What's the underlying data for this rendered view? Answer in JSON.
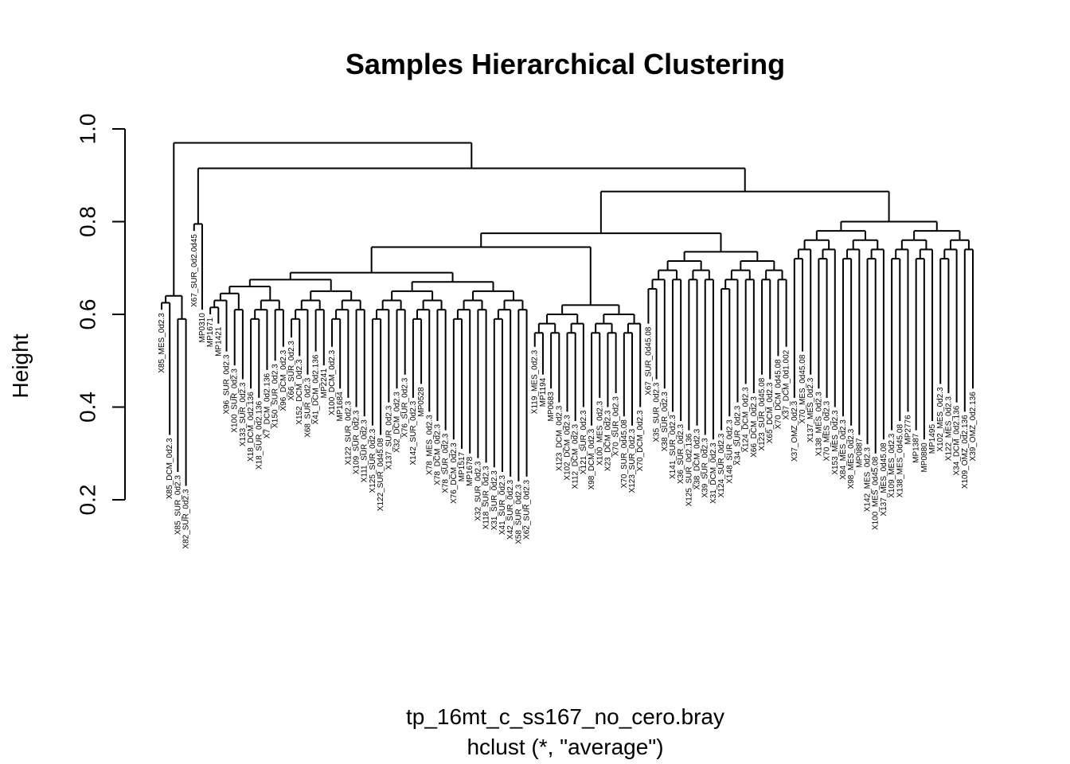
{
  "chart_data": {
    "type": "dendrogram",
    "title": "Samples Hierarchical Clustering",
    "ylabel": "Height",
    "xlabel": "tp_16mt_c_ss167_no_cero.bray",
    "sublabel": "hclust (*, \"average\")",
    "ylim": [
      0.2,
      1.0
    ],
    "yticks": [
      0.2,
      0.4,
      0.6,
      0.8,
      1.0
    ],
    "tick_labels": [
      "0.2",
      "0.4",
      "0.6",
      "0.8",
      "1.0"
    ],
    "merge_heights": {
      "root": 0.97,
      "second": 0.915,
      "third": 0.885,
      "right_super": 0.865,
      "right_right": 0.84,
      "left_major": 0.775,
      "left_sub": 0.745,
      "left_inner": 0.705,
      "left_inner_a": 0.69,
      "left_inner_b": 0.66
    },
    "leaves": [
      {
        "label": "X85_MES_0d2.3",
        "height": 0.61
      },
      {
        "label": "X85_DCM_0d2.3",
        "height": 0.34
      },
      {
        "label": "X85_SUR_0d2.3",
        "height": 0.26
      },
      {
        "label": "X82_SUR_0d2.3",
        "height": 0.23
      },
      {
        "label": "X67_SUR_0d2.0d45",
        "height": 0.78
      },
      {
        "label": "MP0310",
        "height": 0.61
      },
      {
        "label": "MP1671",
        "height": 0.6
      },
      {
        "label": "MP1421",
        "height": 0.58
      },
      {
        "label": "X96_SUR_0d2.3",
        "height": 0.52
      },
      {
        "label": "X100_SUR_0d2.3",
        "height": 0.49
      },
      {
        "label": "X133_SUR_0d2.3",
        "height": 0.46
      },
      {
        "label": "X18_DCM_0d2.136",
        "height": 0.44
      },
      {
        "label": "X18_SUR_0d2.136",
        "height": 0.42
      },
      {
        "label": "X7_DCM_0d2.136",
        "height": 0.48
      },
      {
        "label": "X150_SUR_0d2.3",
        "height": 0.5
      },
      {
        "label": "X96_DCM_0d2.3",
        "height": 0.53
      },
      {
        "label": "X66_SUR_0d2.3",
        "height": 0.55
      },
      {
        "label": "X152_DCM_0d2.3",
        "height": 0.51
      },
      {
        "label": "X68_SUR_0d2.3",
        "height": 0.47
      },
      {
        "label": "X41_DCM_0d2.136",
        "height": 0.52
      },
      {
        "label": "MP2241",
        "height": 0.49
      },
      {
        "label": "X100_DCM_0d2.3",
        "height": 0.53
      },
      {
        "label": "MP1684",
        "height": 0.44
      },
      {
        "label": "X122_SUR_0d2.3",
        "height": 0.42
      },
      {
        "label": "X109_SUR_0d2.3",
        "height": 0.4
      },
      {
        "label": "X111_SUR_0d2.3",
        "height": 0.38
      },
      {
        "label": "X125_SUR_0d2.3",
        "height": 0.36
      },
      {
        "label": "X122_SUR_0d45.08",
        "height": 0.34
      },
      {
        "label": "X137_SUR_0d2.3",
        "height": 0.41
      },
      {
        "label": "X32_DCM_0d2.3",
        "height": 0.44
      },
      {
        "label": "X76_SUR_0d2.3",
        "height": 0.47
      },
      {
        "label": "X142_SUR_0d2.3",
        "height": 0.42
      },
      {
        "label": "MP0528",
        "height": 0.45
      },
      {
        "label": "X78_MES_0d2.3",
        "height": 0.39
      },
      {
        "label": "X78_DCM_0d2.3",
        "height": 0.37
      },
      {
        "label": "X78_SUR_0d2.3",
        "height": 0.35
      },
      {
        "label": "X76_DCM_0d2.3",
        "height": 0.33
      },
      {
        "label": "MP1517",
        "height": 0.31
      },
      {
        "label": "MP1678",
        "height": 0.3
      },
      {
        "label": "X32_SUR_0d2.3",
        "height": 0.29
      },
      {
        "label": "X118_SUR_0d2.3",
        "height": 0.28
      },
      {
        "label": "X31_SUR_0d2.3",
        "height": 0.27
      },
      {
        "label": "X41_SUR_0d2.3",
        "height": 0.26
      },
      {
        "label": "X42_SUR_0d2.3",
        "height": 0.25
      },
      {
        "label": "X58_SUR_0d2.3",
        "height": 0.24
      },
      {
        "label": "X62_SUR_0d2.3",
        "height": 0.25
      },
      {
        "label": "X119_MES_0d2.3",
        "height": 0.53
      },
      {
        "label": "MP1194",
        "height": 0.47
      },
      {
        "label": "MP0683",
        "height": 0.44
      },
      {
        "label": "X123_DCM_0d2.3",
        "height": 0.41
      },
      {
        "label": "X102_DCM_0d2.3",
        "height": 0.39
      },
      {
        "label": "X112_DCM_0d2.3",
        "height": 0.37
      },
      {
        "label": "X121_SUR_0d2.3",
        "height": 0.4
      },
      {
        "label": "X98_DCM_0d2.3",
        "height": 0.36
      },
      {
        "label": "X100_MES_0d2.3",
        "height": 0.42
      },
      {
        "label": "X23_DCM_0d2.3",
        "height": 0.4
      },
      {
        "label": "X70_SUR_0d2.3",
        "height": 0.43
      },
      {
        "label": "X70_SUR_0d45.08",
        "height": 0.38
      },
      {
        "label": "X123_SUR_0d2.3",
        "height": 0.36
      },
      {
        "label": "X70_DCM_0d2.3",
        "height": 0.4
      },
      {
        "label": "X67_SUR_0d45.08",
        "height": 0.58
      },
      {
        "label": "X35_SUR_0d2.3",
        "height": 0.46
      },
      {
        "label": "X38_SUR_0d2.3",
        "height": 0.44
      },
      {
        "label": "X141_SUR_0d2.3",
        "height": 0.39
      },
      {
        "label": "X36_SUR_0d2.3",
        "height": 0.37
      },
      {
        "label": "X125_SUR_0d2.136",
        "height": 0.35
      },
      {
        "label": "X38_DCM_0d2.3",
        "height": 0.36
      },
      {
        "label": "X39_SUR_0d2.3",
        "height": 0.34
      },
      {
        "label": "X31_DCM_0d2.3",
        "height": 0.33
      },
      {
        "label": "X124_SUR_0d2.3",
        "height": 0.35
      },
      {
        "label": "X148_SUR_0d2.3",
        "height": 0.38
      },
      {
        "label": "X34_SUR_0d2.3",
        "height": 0.41
      },
      {
        "label": "X124_DCM_0d2.3",
        "height": 0.45
      },
      {
        "label": "X66_DCM_0d2.3",
        "height": 0.43
      },
      {
        "label": "X123_SUR_0d45.08",
        "height": 0.47
      },
      {
        "label": "X65_DCM_0d2.3",
        "height": 0.46
      },
      {
        "label": "X70_DCM_0d45.08",
        "height": 0.51
      },
      {
        "label": "X37_DCM_0d1.002",
        "height": 0.53
      },
      {
        "label": "X37_OMZ_0d2.3",
        "height": 0.42
      },
      {
        "label": "X70_MES_0d45.08",
        "height": 0.52
      },
      {
        "label": "X137_MES_0d2.3",
        "height": 0.47
      },
      {
        "label": "X138_MES_0d2.3",
        "height": 0.44
      },
      {
        "label": "X70_MES_0d2.3",
        "height": 0.42
      },
      {
        "label": "X153_MES_0d2.3",
        "height": 0.4
      },
      {
        "label": "X84_MES_0d2.3",
        "height": 0.38
      },
      {
        "label": "X98_MES_0d2.3",
        "height": 0.36
      },
      {
        "label": "MP0887",
        "height": 0.34
      },
      {
        "label": "X142_MES_0d2.3",
        "height": 0.32
      },
      {
        "label": "X100_MES_0d45.08",
        "height": 0.3
      },
      {
        "label": "X137_MES_0d45.08",
        "height": 0.33
      },
      {
        "label": "X109_MES_0d2.3",
        "height": 0.35
      },
      {
        "label": "X138_MES_0d45.08",
        "height": 0.37
      },
      {
        "label": "MP2776",
        "height": 0.39
      },
      {
        "label": "MP1387",
        "height": 0.35
      },
      {
        "label": "MP0880",
        "height": 0.33
      },
      {
        "label": "MP1495",
        "height": 0.37
      },
      {
        "label": "X102_MES_0d2.3",
        "height": 0.45
      },
      {
        "label": "X122_MES_0d2.3",
        "height": 0.43
      },
      {
        "label": "X34_DCM_0d2.136",
        "height": 0.41
      },
      {
        "label": "X109_OMZ_0d2.136",
        "height": 0.39
      },
      {
        "label": "X39_OMZ_0d2.136",
        "height": 0.44
      }
    ]
  }
}
